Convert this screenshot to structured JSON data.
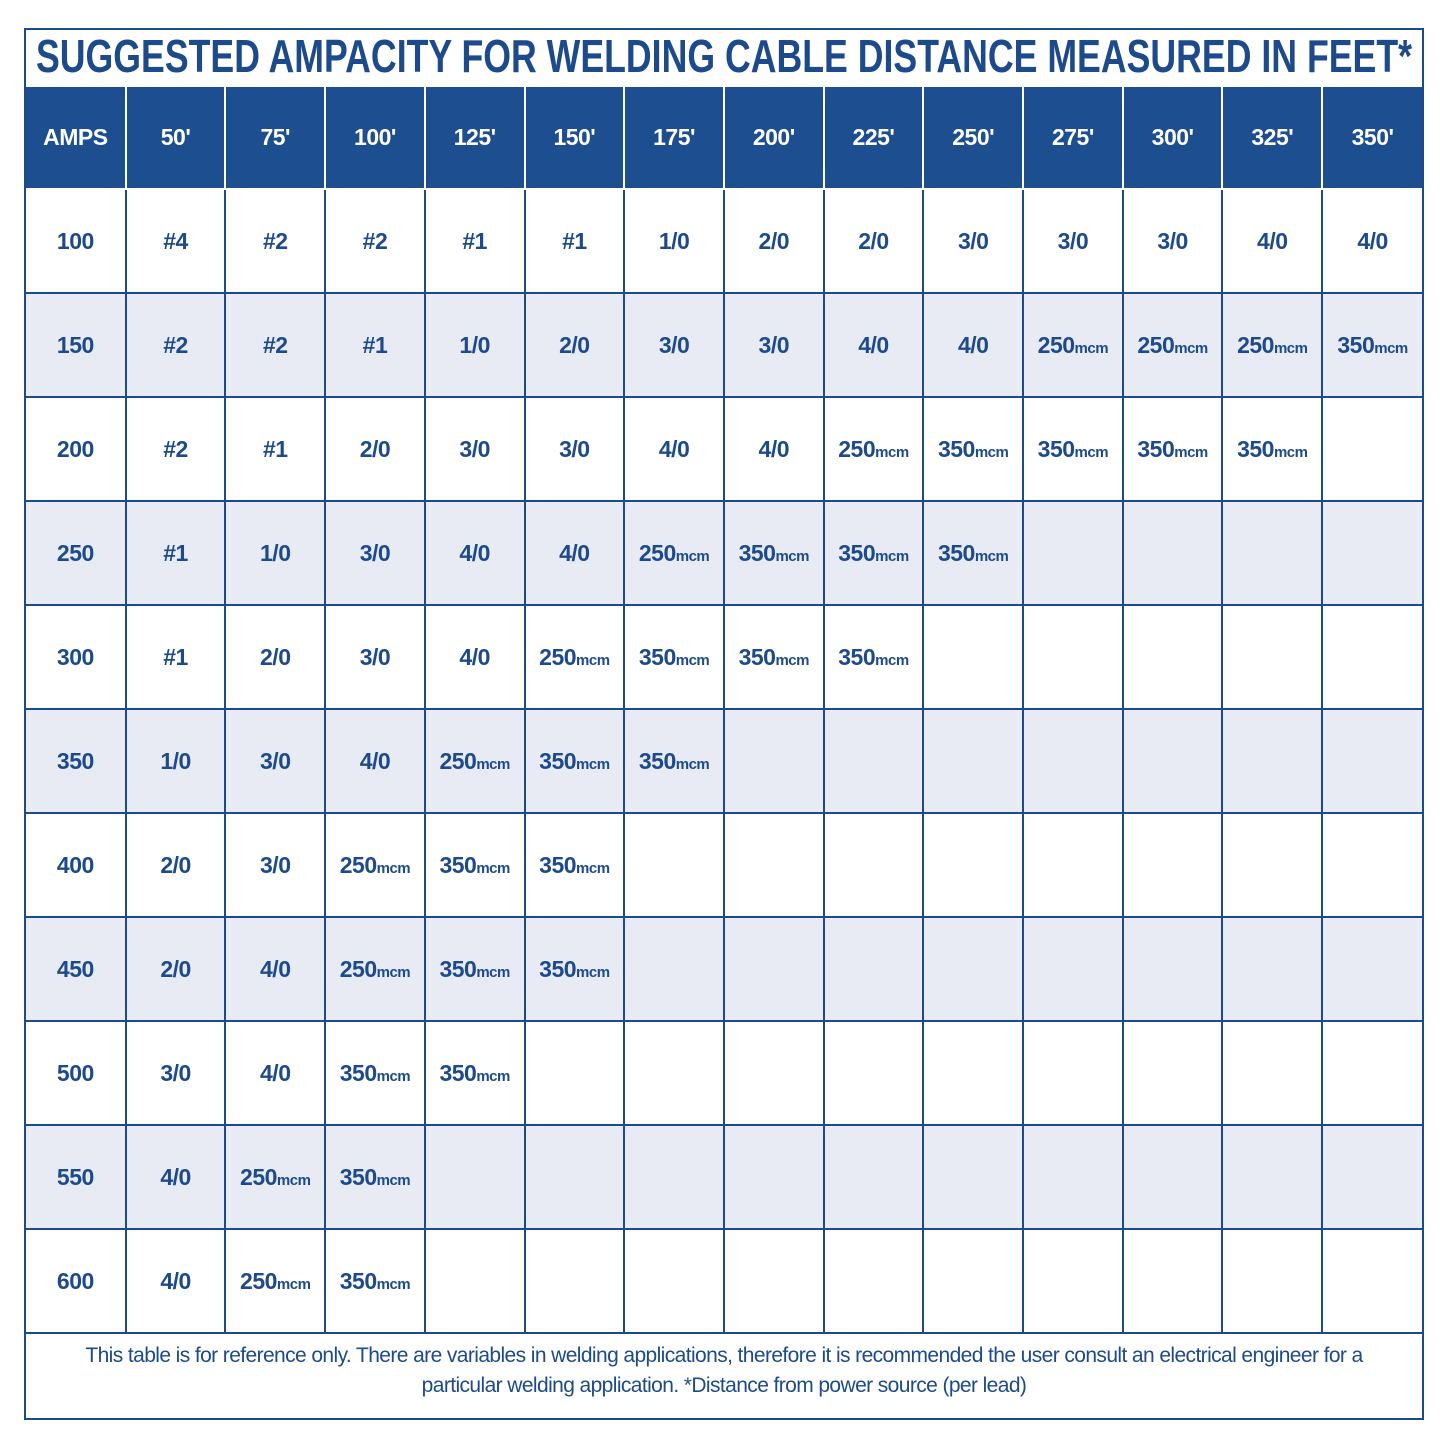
{
  "title": "SUGGESTED AMPACITY FOR WELDING CABLE DISTANCE MEASURED IN FEET*",
  "table": {
    "header": [
      "AMPS",
      "50'",
      "75'",
      "100'",
      "125'",
      "150'",
      "175'",
      "200'",
      "225'",
      "250'",
      "275'",
      "300'",
      "325'",
      "350'"
    ],
    "rows": [
      [
        100,
        "#4",
        "#2",
        "#2",
        "#1",
        "#1",
        "1/0",
        "2/0",
        "2/0",
        "3/0",
        "3/0",
        "3/0",
        "4/0",
        "4/0"
      ],
      [
        150,
        "#2",
        "#2",
        "#1",
        "1/0",
        "2/0",
        "3/0",
        "3/0",
        "4/0",
        "4/0",
        "250mcm",
        "250mcm",
        "250mcm",
        "350mcm"
      ],
      [
        200,
        "#2",
        "#1",
        "2/0",
        "3/0",
        "3/0",
        "4/0",
        "4/0",
        "250mcm",
        "350mcm",
        "350mcm",
        "350mcm",
        "350mcm"
      ],
      [
        250,
        "#1",
        "1/0",
        "3/0",
        "4/0",
        "4/0",
        "250mcm",
        "350mcm",
        "350mcm",
        "350mcm"
      ],
      [
        300,
        "#1",
        "2/0",
        "3/0",
        "4/0",
        "250mcm",
        "350mcm",
        "350mcm",
        "350mcm"
      ],
      [
        350,
        "1/0",
        "3/0",
        "4/0",
        "250mcm",
        "350mcm",
        "350mcm"
      ],
      [
        400,
        "2/0",
        "3/0",
        "250mcm",
        "350mcm",
        "350mcm"
      ],
      [
        450,
        "2/0",
        "4/0",
        "250mcm",
        "350mcm",
        "350mcm"
      ],
      [
        500,
        "3/0",
        "4/0",
        "350mcm",
        "350mcm"
      ],
      [
        550,
        "4/0",
        "250mcm",
        "350mcm"
      ],
      [
        600,
        "4/0",
        "250mcm",
        "350mcm"
      ]
    ]
  },
  "footer": "This table is for reference only. There are variables in welding applications, therefore it is recommended the user consult an electrical engineer for a particular welding application. *Distance from power source (per lead)"
}
